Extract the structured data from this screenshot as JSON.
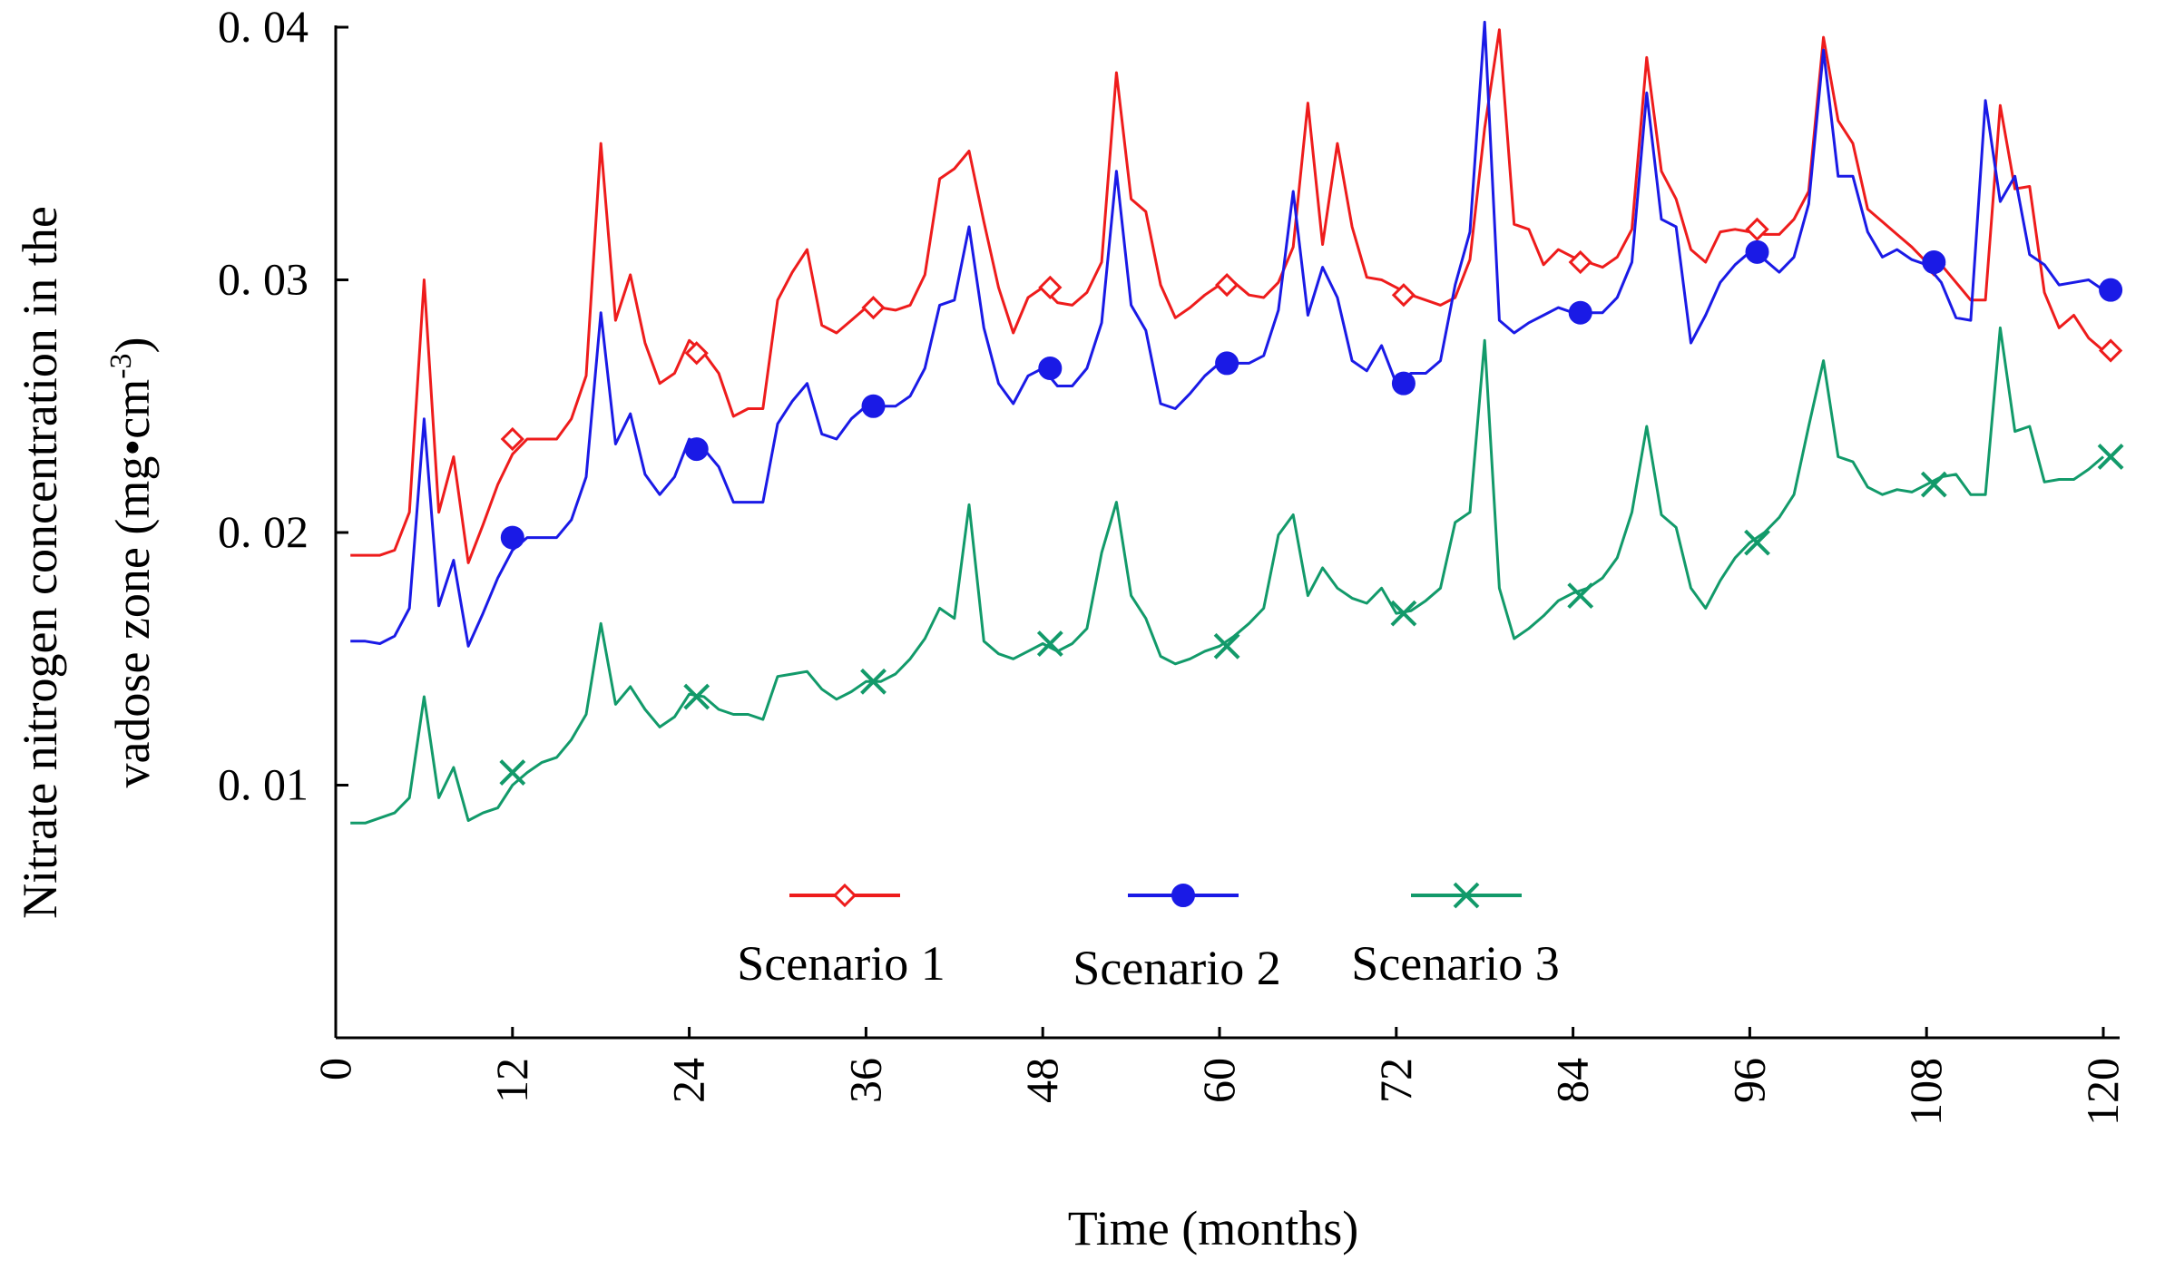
{
  "chart_data": {
    "type": "line",
    "title": "",
    "xlabel": "Time (months)",
    "ylabel": "Nitrate nitrogen concentration in the vadose zone (mg•cm⁻³)",
    "ylabel_line1": "Nitrate nitrogen concentration in the",
    "ylabel_line2_prefix": "vadose zone (mg",
    "ylabel_dot": "•",
    "ylabel_unit": "cm",
    "ylabel_exp": "-3",
    "ylabel_close": ")",
    "xlim": [
      0,
      121
    ],
    "ylim": [
      0,
      0.04
    ],
    "x_ticks": [
      0,
      12,
      24,
      36,
      48,
      60,
      72,
      84,
      96,
      108,
      120
    ],
    "x_tick_labels": [
      "0",
      "12",
      "24",
      "36",
      "48",
      "60",
      "72",
      "84",
      "96",
      "108",
      "120"
    ],
    "y_ticks": [
      0.01,
      0.02,
      0.03,
      0.04
    ],
    "y_tick_labels": [
      "0. 01",
      "0. 02",
      "0. 03",
      "0. 04"
    ],
    "legend_position": "center, inside plot (lower middle)",
    "series": [
      {
        "name": "Scenario 1",
        "color": "#ee1c1c",
        "marker": "diamond-open",
        "x": [
          1,
          2,
          3,
          4,
          5,
          6,
          7,
          8,
          9,
          10,
          11,
          12,
          13,
          14,
          15,
          16,
          17,
          18,
          19,
          20,
          21,
          22,
          23,
          24,
          25,
          26,
          27,
          28,
          29,
          30,
          31,
          32,
          33,
          34,
          35,
          36,
          37,
          38,
          39,
          40,
          41,
          42,
          43,
          44,
          45,
          46,
          47,
          48,
          49,
          50,
          51,
          52,
          53,
          54,
          55,
          56,
          57,
          58,
          59,
          60,
          61,
          62,
          63,
          64,
          65,
          66,
          67,
          68,
          69,
          70,
          71,
          72,
          73,
          74,
          75,
          76,
          77,
          78,
          79,
          80,
          81,
          82,
          83,
          84,
          85,
          86,
          87,
          88,
          89,
          90,
          91,
          92,
          93,
          94,
          95,
          96,
          97,
          98,
          99,
          100,
          101,
          102,
          103,
          104,
          105,
          106,
          107,
          108,
          109,
          110,
          111,
          112,
          113,
          114,
          115,
          116,
          117,
          118,
          119,
          120
        ],
        "y": [
          0.0191,
          0.0191,
          0.0191,
          0.0193,
          0.0208,
          0.03,
          0.0208,
          0.023,
          0.0188,
          0.0203,
          0.0219,
          0.0231,
          0.0237,
          0.0237,
          0.0237,
          0.0245,
          0.0262,
          0.0354,
          0.0284,
          0.0302,
          0.0275,
          0.0259,
          0.0263,
          0.0276,
          0.0271,
          0.0263,
          0.0246,
          0.0249,
          0.0249,
          0.0292,
          0.0303,
          0.0312,
          0.0282,
          0.0279,
          0.0284,
          0.0289,
          0.0289,
          0.0288,
          0.029,
          0.0302,
          0.034,
          0.0344,
          0.0351,
          0.0323,
          0.0297,
          0.0279,
          0.0293,
          0.0297,
          0.0291,
          0.029,
          0.0295,
          0.0307,
          0.0382,
          0.0332,
          0.0327,
          0.0298,
          0.0285,
          0.0289,
          0.0294,
          0.0298,
          0.0299,
          0.0294,
          0.0293,
          0.0299,
          0.0313,
          0.037,
          0.0314,
          0.0354,
          0.0321,
          0.0301,
          0.03,
          0.0297,
          0.0294,
          0.0292,
          0.029,
          0.0293,
          0.0308,
          0.036,
          0.0399,
          0.0322,
          0.032,
          0.0306,
          0.0312,
          0.0309,
          0.0307,
          0.0305,
          0.0309,
          0.032,
          0.0388,
          0.0343,
          0.0332,
          0.0312,
          0.0307,
          0.0319,
          0.032,
          0.0319,
          0.0318,
          0.0318,
          0.0324,
          0.0335,
          0.0396,
          0.0363,
          0.0354,
          0.0328,
          0.0323,
          0.0318,
          0.0313,
          0.0307,
          0.0306,
          0.0299,
          0.0292,
          0.0292,
          0.0369,
          0.0336,
          0.0337,
          0.0295,
          0.0281,
          0.0286,
          0.0277,
          0.0272
        ],
        "marker_x": [
          12,
          24.5,
          36.5,
          48.5,
          60.5,
          72.5,
          84.5,
          96.5,
          108.5,
          120.5
        ],
        "marker_y": [
          0.0237,
          0.0271,
          0.0289,
          0.0297,
          0.0298,
          0.0294,
          0.0307,
          0.032,
          0.0306,
          0.0272
        ]
      },
      {
        "name": "Scenario 2",
        "color": "#1a1ae6",
        "marker": "circle-filled",
        "x": [
          1,
          2,
          3,
          4,
          5,
          6,
          7,
          8,
          9,
          10,
          11,
          12,
          13,
          14,
          15,
          16,
          17,
          18,
          19,
          20,
          21,
          22,
          23,
          24,
          25,
          26,
          27,
          28,
          29,
          30,
          31,
          32,
          33,
          34,
          35,
          36,
          37,
          38,
          39,
          40,
          41,
          42,
          43,
          44,
          45,
          46,
          47,
          48,
          49,
          50,
          51,
          52,
          53,
          54,
          55,
          56,
          57,
          58,
          59,
          60,
          61,
          62,
          63,
          64,
          65,
          66,
          67,
          68,
          69,
          70,
          71,
          72,
          73,
          74,
          75,
          76,
          77,
          78,
          79,
          80,
          81,
          82,
          83,
          84,
          85,
          86,
          87,
          88,
          89,
          90,
          91,
          92,
          93,
          94,
          95,
          96,
          97,
          98,
          99,
          100,
          101,
          102,
          103,
          104,
          105,
          106,
          107,
          108,
          109,
          110,
          111,
          112,
          113,
          114,
          115,
          116,
          117,
          118,
          119,
          120
        ],
        "y": [
          0.0157,
          0.0157,
          0.0156,
          0.0159,
          0.017,
          0.0245,
          0.0171,
          0.0189,
          0.0155,
          0.0168,
          0.0182,
          0.0193,
          0.0198,
          0.0198,
          0.0198,
          0.0205,
          0.0222,
          0.0287,
          0.0235,
          0.0247,
          0.0223,
          0.0215,
          0.0222,
          0.0237,
          0.0233,
          0.0226,
          0.0212,
          0.0212,
          0.0212,
          0.0243,
          0.0252,
          0.0259,
          0.0239,
          0.0237,
          0.0245,
          0.025,
          0.025,
          0.025,
          0.0254,
          0.0265,
          0.029,
          0.0292,
          0.0321,
          0.0281,
          0.0259,
          0.0251,
          0.0262,
          0.0265,
          0.0258,
          0.0258,
          0.0265,
          0.0283,
          0.0343,
          0.029,
          0.028,
          0.0251,
          0.0249,
          0.0255,
          0.0262,
          0.0267,
          0.0267,
          0.0267,
          0.027,
          0.0288,
          0.0335,
          0.0286,
          0.0305,
          0.0293,
          0.0268,
          0.0264,
          0.0274,
          0.0259,
          0.0263,
          0.0263,
          0.0268,
          0.0298,
          0.0319,
          0.0402,
          0.0284,
          0.0279,
          0.0283,
          0.0286,
          0.0289,
          0.0287,
          0.0287,
          0.0287,
          0.0293,
          0.0307,
          0.0374,
          0.0324,
          0.0321,
          0.0275,
          0.0286,
          0.0299,
          0.0306,
          0.0311,
          0.0308,
          0.0303,
          0.0309,
          0.033,
          0.0391,
          0.0341,
          0.0341,
          0.0319,
          0.0309,
          0.0312,
          0.0308,
          0.0306,
          0.0299,
          0.0285,
          0.0284,
          0.0371,
          0.0331,
          0.0341,
          0.031,
          0.0306,
          0.0298,
          0.0299,
          0.03,
          0.0296
        ],
        "marker_x": [
          12,
          24.5,
          36.5,
          48.5,
          60.5,
          72.5,
          84.5,
          96.5,
          108.5,
          120.5
        ],
        "marker_y": [
          0.0198,
          0.0233,
          0.025,
          0.0265,
          0.0267,
          0.0259,
          0.0287,
          0.0311,
          0.0307,
          0.0296
        ]
      },
      {
        "name": "Scenario 3",
        "color": "#129a6a",
        "marker": "x",
        "x": [
          1,
          2,
          3,
          4,
          5,
          6,
          7,
          8,
          9,
          10,
          11,
          12,
          13,
          14,
          15,
          16,
          17,
          18,
          19,
          20,
          21,
          22,
          23,
          24,
          25,
          26,
          27,
          28,
          29,
          30,
          31,
          32,
          33,
          34,
          35,
          36,
          37,
          38,
          39,
          40,
          41,
          42,
          43,
          44,
          45,
          46,
          47,
          48,
          49,
          50,
          51,
          52,
          53,
          54,
          55,
          56,
          57,
          58,
          59,
          60,
          61,
          62,
          63,
          64,
          65,
          66,
          67,
          68,
          69,
          70,
          71,
          72,
          73,
          74,
          75,
          76,
          77,
          78,
          79,
          80,
          81,
          82,
          83,
          84,
          85,
          86,
          87,
          88,
          89,
          90,
          91,
          92,
          93,
          94,
          95,
          96,
          97,
          98,
          99,
          100,
          101,
          102,
          103,
          104,
          105,
          106,
          107,
          108,
          109,
          110,
          111,
          112,
          113,
          114,
          115,
          116,
          117,
          118,
          119,
          120
        ],
        "y": [
          0.0085,
          0.0085,
          0.0087,
          0.0089,
          0.0095,
          0.0135,
          0.0095,
          0.0107,
          0.0086,
          0.0089,
          0.0091,
          0.01,
          0.0105,
          0.0109,
          0.0111,
          0.0118,
          0.0128,
          0.0164,
          0.0132,
          0.0139,
          0.013,
          0.0123,
          0.0127,
          0.0136,
          0.0135,
          0.013,
          0.0128,
          0.0128,
          0.0126,
          0.0143,
          0.0144,
          0.0145,
          0.0138,
          0.0134,
          0.0137,
          0.0141,
          0.0141,
          0.0144,
          0.015,
          0.0158,
          0.017,
          0.0166,
          0.0211,
          0.0157,
          0.0152,
          0.015,
          0.0153,
          0.0156,
          0.0153,
          0.0156,
          0.0162,
          0.0192,
          0.0212,
          0.0175,
          0.0166,
          0.0151,
          0.0148,
          0.015,
          0.0153,
          0.0155,
          0.0159,
          0.0164,
          0.017,
          0.0199,
          0.0207,
          0.0175,
          0.0186,
          0.0178,
          0.0174,
          0.0172,
          0.0178,
          0.0168,
          0.0169,
          0.0173,
          0.0178,
          0.0204,
          0.0208,
          0.0276,
          0.0178,
          0.0158,
          0.0162,
          0.0167,
          0.0173,
          0.0176,
          0.0178,
          0.0182,
          0.019,
          0.0208,
          0.0242,
          0.0207,
          0.0202,
          0.0178,
          0.017,
          0.0181,
          0.019,
          0.0196,
          0.02,
          0.0206,
          0.0215,
          0.0242,
          0.0268,
          0.023,
          0.0228,
          0.0218,
          0.0215,
          0.0217,
          0.0216,
          0.0219,
          0.0222,
          0.0223,
          0.0215,
          0.0215,
          0.0281,
          0.024,
          0.0242,
          0.022,
          0.0221,
          0.0221,
          0.0225,
          0.023
        ],
        "marker_x": [
          12,
          24.5,
          36.5,
          48.5,
          60.5,
          72.5,
          84.5,
          96.5,
          108.5,
          120.5
        ],
        "marker_y": [
          0.0105,
          0.0135,
          0.0141,
          0.0156,
          0.0155,
          0.0168,
          0.0175,
          0.0196,
          0.0219,
          0.023
        ]
      }
    ]
  }
}
